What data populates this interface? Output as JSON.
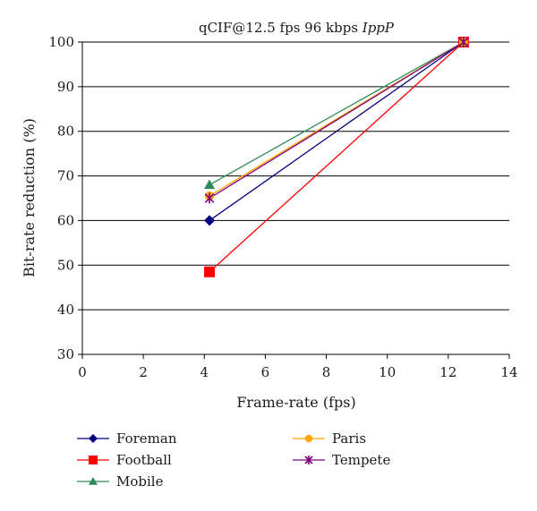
{
  "chart_data": {
    "type": "line",
    "title_main": "qCIF@12.5 fps 96 kbps ",
    "title_italic": "IppP",
    "xlabel": "Frame-rate (fps)",
    "ylabel": "Bit-rate reduction (%)",
    "xlim": [
      0,
      14
    ],
    "ylim": [
      30,
      100
    ],
    "xticks": [
      "0",
      "2",
      "4",
      "6",
      "8",
      "10",
      "12",
      "14"
    ],
    "yticks": [
      "30",
      "40",
      "50",
      "60",
      "70",
      "80",
      "90",
      "100"
    ],
    "grid": "horizontal",
    "legend_position": "bottom",
    "series": [
      {
        "name": "Foreman",
        "color": "#00007f",
        "marker": "diamond",
        "x": [
          4.17,
          12.5
        ],
        "y": [
          60,
          100
        ]
      },
      {
        "name": "Football",
        "color": "#ff0000",
        "marker": "square",
        "x": [
          4.17,
          12.5
        ],
        "y": [
          48.5,
          100
        ]
      },
      {
        "name": "Mobile",
        "color": "#2e8b57",
        "marker": "triangle",
        "x": [
          4.17,
          12.5
        ],
        "y": [
          68,
          100
        ]
      },
      {
        "name": "Paris",
        "color": "#ffa500",
        "marker": "circle",
        "x": [
          4.17,
          12.5
        ],
        "y": [
          65.5,
          100
        ]
      },
      {
        "name": "Tempete",
        "color": "#800080",
        "marker": "asterisk",
        "x": [
          4.17,
          12.5
        ],
        "y": [
          65,
          100
        ]
      }
    ]
  }
}
